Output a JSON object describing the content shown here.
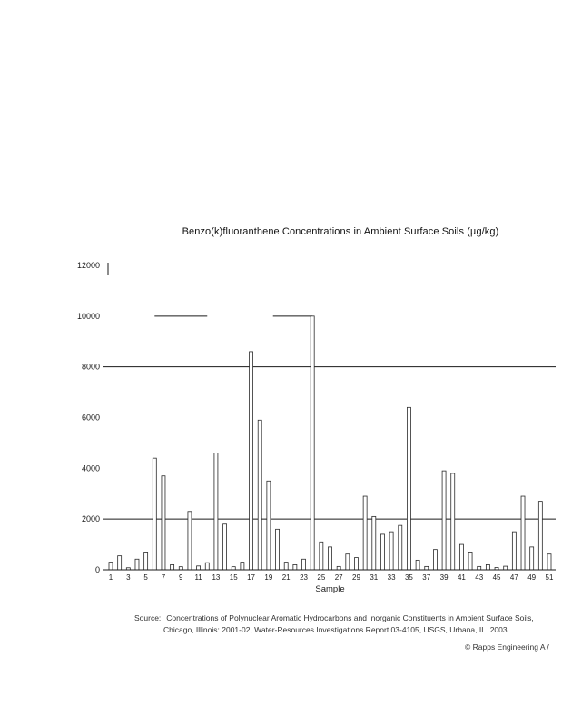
{
  "page": {
    "source_label": "Source:",
    "source_line1": "Concentrations of Polynuclear Aromatic Hydrocarbons and Inorganic Constituents in Ambient Surface Soils,",
    "source_line2": "Chicago, Illinois: 2001-02, Water-Resources Investigations Report 03-4105, USGS, Urbana, IL. 2003.",
    "copyright": "© Rapps Engineering A /"
  },
  "chart_data": {
    "type": "bar",
    "title": "Benzo(k)fluoranthene Concentrations in Ambient Surface Soils (µg/kg)",
    "xlabel": "Sample",
    "ylabel": "",
    "ylim": [
      0,
      12000
    ],
    "yticks": [
      0,
      2000,
      4000,
      6000,
      8000,
      10000,
      12000
    ],
    "x_range": [
      1,
      51
    ],
    "xtick_labels": [
      1,
      3,
      5,
      7,
      9,
      11,
      13,
      15,
      17,
      19,
      21,
      23,
      25,
      27,
      29,
      31,
      33,
      35,
      37,
      39,
      41,
      43,
      45,
      47,
      49,
      51
    ],
    "values": [
      300,
      550,
      80,
      420,
      700,
      4400,
      3700,
      200,
      120,
      2300,
      150,
      280,
      4600,
      1800,
      120,
      300,
      8600,
      5900,
      3500,
      1600,
      300,
      200,
      420,
      10000,
      1100,
      900,
      130,
      620,
      480,
      2900,
      2100,
      1400,
      1500,
      1750,
      6400,
      380,
      130,
      800,
      3900,
      3800,
      1000,
      700,
      130,
      200,
      90,
      140,
      1500,
      2900,
      900,
      2700,
      620
    ],
    "bar_style": {
      "fill": "#ffffff",
      "stroke": "#2a2a2a"
    },
    "grid": "horizontal reference lines at 2000 and 8000 only",
    "legend": null,
    "reference_lines": [
      {
        "y": 2000,
        "full_width": true
      },
      {
        "y": 8000,
        "full_width": true
      },
      {
        "y": 10000,
        "full_width": false,
        "from_sample": 6,
        "to_sample": 12
      },
      {
        "y": 10000,
        "full_width": false,
        "from_sample": 19.5,
        "to_sample": 24
      }
    ]
  }
}
